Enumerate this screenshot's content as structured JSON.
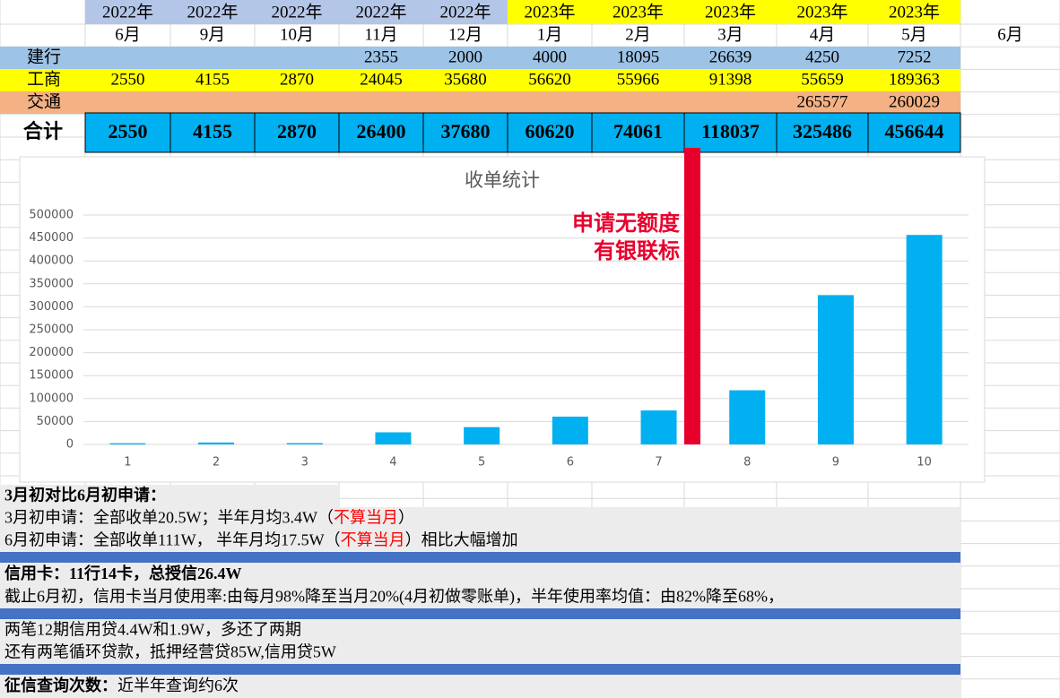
{
  "table": {
    "years": [
      "2022年",
      "2022年",
      "2022年",
      "2022年",
      "2022年",
      "2023年",
      "2023年",
      "2023年",
      "2023年",
      "2023年"
    ],
    "months": [
      "6月",
      "9月",
      "10月",
      "11月",
      "12月",
      "1月",
      "2月",
      "3月",
      "4月",
      "5月",
      "6月"
    ],
    "rows": [
      {
        "label": "建行",
        "values": [
          null,
          null,
          null,
          2355,
          2000,
          4000,
          18095,
          26639,
          4250,
          7252
        ]
      },
      {
        "label": "工商",
        "values": [
          2550,
          4155,
          2870,
          24045,
          35680,
          56620,
          55966,
          91398,
          55659,
          189363
        ]
      },
      {
        "label": "交通",
        "values": [
          null,
          null,
          null,
          null,
          null,
          null,
          null,
          null,
          265577,
          260029
        ]
      }
    ],
    "total": {
      "label": "合计",
      "values": [
        2550,
        4155,
        2870,
        26400,
        37680,
        60620,
        74061,
        118037,
        325486,
        456644
      ]
    }
  },
  "chart_data": {
    "type": "bar",
    "title": "收单统计",
    "categories": [
      "1",
      "2",
      "3",
      "4",
      "5",
      "6",
      "7",
      "8",
      "9",
      "10"
    ],
    "values": [
      2550,
      4155,
      2870,
      26400,
      37680,
      60620,
      74061,
      118037,
      325486,
      456644
    ],
    "color": "#00b0f0",
    "ylim": [
      0,
      500000
    ],
    "yticks": [
      0,
      50000,
      100000,
      150000,
      200000,
      250000,
      300000,
      350000,
      400000,
      450000,
      500000
    ],
    "grid": true,
    "annotations": [
      "申请无额度",
      "有银联标"
    ]
  },
  "notes": [
    {
      "runs": [
        {
          "text": "3月初对比6月初申请："
        }
      ]
    },
    {
      "runs": [
        {
          "text": "3月初申请：全部收单20.5W；半年月均3.4W（"
        },
        {
          "text": "不算当月",
          "red": true
        },
        {
          "text": "）"
        }
      ]
    },
    {
      "runs": [
        {
          "text": "6月初申请：全部收单111W， 半年月均17.5W（"
        },
        {
          "text": "不算当月",
          "red": true
        },
        {
          "text": "）相比大幅增加"
        }
      ]
    },
    {
      "runs": [
        {
          "text": "信用卡：11行14卡，总授信26.4W"
        }
      ]
    },
    {
      "runs": [
        {
          "text": "截止6月初，信用卡当月使用率:由每月98%降至当月20%(4月初做零账单)，半年使用率均值：由82%降至68%，"
        }
      ]
    },
    {
      "runs": [
        {
          "text": "两笔12期信用贷4.4W和1.9W，多还了两期"
        }
      ]
    },
    {
      "runs": [
        {
          "text": "还有两笔循环贷款，抵押经营贷85W,信用贷5W"
        }
      ]
    },
    {
      "runs": [
        {
          "text": "征信查询次数：",
          "bold": true
        },
        {
          "text": "近半年查询约6次"
        }
      ]
    }
  ]
}
